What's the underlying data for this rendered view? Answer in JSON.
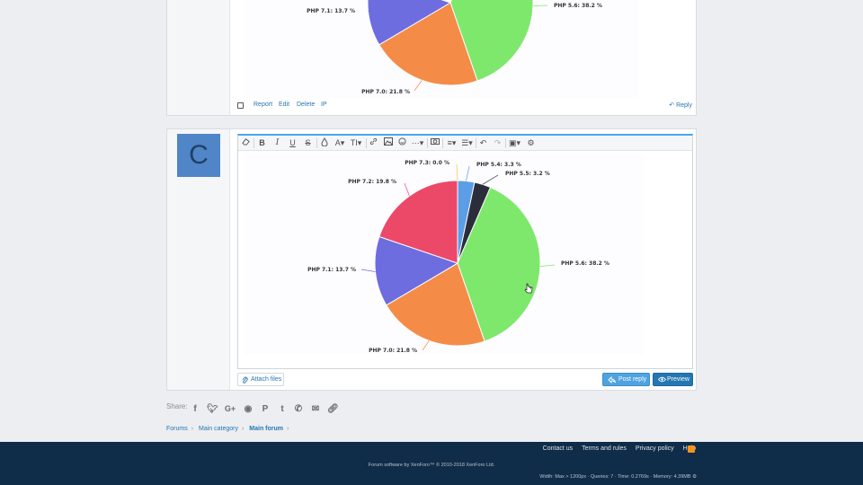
{
  "previous_post": {
    "chart_data": {
      "type": "pie",
      "slices": [
        {
          "label": "PHP 5.6: 38.2 %",
          "value": 38.2,
          "color": "#7ee86d"
        },
        {
          "label": "PHP 7.0: 21.8 %",
          "value": 21.8,
          "color": "#f48c48"
        },
        {
          "label": "PHP 7.1: 13.7 %",
          "value": 13.7,
          "color": "#6d6de0"
        }
      ]
    },
    "actions": {
      "report": "Report",
      "edit": "Edit",
      "delete": "Delete",
      "ip": "IP",
      "reply": "Reply"
    }
  },
  "reply": {
    "avatar_letter": "C",
    "chart_data": {
      "type": "pie",
      "slices": [
        {
          "label": "PHP 5.4: 3.3 %",
          "value": 3.3,
          "color": "#5b9ee6"
        },
        {
          "label": "PHP 5.5: 3.2 %",
          "value": 3.2,
          "color": "#2b2d3a"
        },
        {
          "label": "PHP 5.6: 38.2 %",
          "value": 38.2,
          "color": "#7ee86d"
        },
        {
          "label": "PHP 7.0: 21.8 %",
          "value": 21.8,
          "color": "#f48c48"
        },
        {
          "label": "PHP 7.1: 13.7 %",
          "value": 13.7,
          "color": "#6d6de0"
        },
        {
          "label": "PHP 7.2: 19.8 %",
          "value": 19.8,
          "color": "#ec4868"
        },
        {
          "label": "PHP 7.3: 0.0 %",
          "value": 0.0,
          "color": "#f4c542"
        }
      ]
    },
    "toolbar_icons": [
      "eraser-icon",
      "bold-icon",
      "italic-icon",
      "underline-icon",
      "strikethrough-icon",
      "text-color-icon",
      "font-family-icon",
      "font-size-icon",
      "link-icon",
      "image-icon",
      "smilie-icon",
      "more-icon",
      "media-icon",
      "align-icon",
      "list-icon",
      "undo-icon",
      "redo-icon",
      "drafts-icon",
      "settings-icon"
    ],
    "attach_label": "Attach files",
    "post_label": "Post reply",
    "preview_label": "Preview"
  },
  "share_label": "Share:",
  "breadcrumb": [
    "Forums",
    "Main category",
    "Main forum"
  ],
  "footer": {
    "links": [
      "Contact us",
      "Terms and rules",
      "Privacy policy",
      "Help"
    ],
    "copyright": "Forum software by XenForo™ © 2010-2018 XenForo Ltd.",
    "debug": "Width: Max > 1200px · Queries: 7 · Time: 0.2769s · Memory: 4.39MB"
  },
  "colors": {
    "accent": "#2577b1",
    "footer_bg": "#0f2c48"
  }
}
